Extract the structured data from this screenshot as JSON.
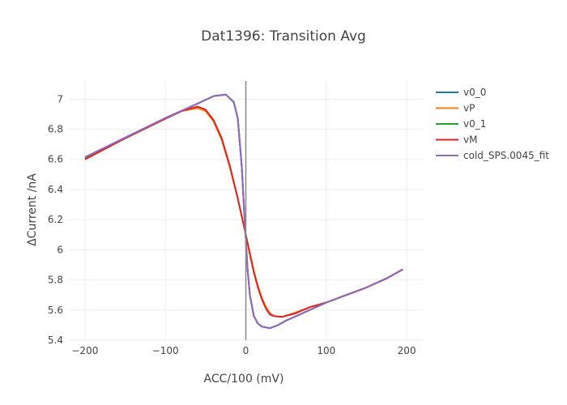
{
  "chart_data": {
    "type": "line",
    "title": "Dat1396: Transition Avg",
    "xlabel": "ACC/100 (mV)",
    "ylabel": "ΔCurrent /nA",
    "xlim": [
      -220,
      220
    ],
    "ylim": [
      5.4,
      7.12
    ],
    "xticks": [
      -200,
      -100,
      0,
      100,
      200
    ],
    "xtick_labels": [
      "−200",
      "−100",
      "0",
      "100",
      "200"
    ],
    "yticks": [
      5.4,
      5.6,
      5.8,
      6.0,
      6.2,
      6.4,
      6.6,
      6.8,
      7.0
    ],
    "ytick_labels": [
      "5.4",
      "5.6",
      "5.8",
      "6",
      "6.2",
      "6.4",
      "6.6",
      "6.8",
      "7"
    ],
    "grid": true,
    "legend_position": "top-right",
    "vertical_line_x": 0,
    "series": [
      {
        "name": "v0_0",
        "color": "#1f77b4",
        "x": [
          -200,
          -150,
          -100,
          -60,
          -40,
          -25,
          -15,
          -10,
          -5,
          -2,
          0,
          2,
          5,
          10,
          15,
          20,
          30,
          40,
          50,
          75,
          100,
          125,
          150,
          175,
          195
        ],
        "y": [
          6.61,
          6.74,
          6.87,
          6.97,
          7.02,
          7.03,
          6.98,
          6.87,
          6.55,
          6.25,
          6.07,
          5.88,
          5.7,
          5.56,
          5.51,
          5.49,
          5.48,
          5.5,
          5.53,
          5.59,
          5.65,
          5.7,
          5.75,
          5.81,
          5.87
        ]
      },
      {
        "name": "vP",
        "color": "#ff7f0e",
        "x": [
          -200,
          -150,
          -100,
          -80,
          -60,
          -50,
          -40,
          -30,
          -20,
          -10,
          0,
          5,
          10,
          15,
          20,
          25,
          30,
          35,
          45,
          60,
          80,
          100,
          125,
          150,
          175,
          195
        ],
        "y": [
          6.6,
          6.74,
          6.87,
          6.92,
          6.94,
          6.92,
          6.85,
          6.73,
          6.55,
          6.34,
          6.1,
          5.98,
          5.86,
          5.76,
          5.68,
          5.62,
          5.58,
          5.56,
          5.555,
          5.58,
          5.62,
          5.65,
          5.7,
          5.75,
          5.81,
          5.87
        ]
      },
      {
        "name": "v0_1",
        "color": "#2ca02c",
        "x": [
          -200,
          -150,
          -100,
          -80,
          -60,
          -40,
          -25,
          -15,
          -10,
          -5,
          -2,
          0,
          2,
          5,
          10,
          15,
          20,
          30,
          40,
          50,
          75,
          100,
          125,
          150,
          175,
          195
        ],
        "y": [
          6.61,
          6.74,
          6.87,
          6.92,
          6.97,
          7.02,
          7.03,
          6.98,
          6.87,
          6.55,
          6.25,
          6.07,
          5.88,
          5.7,
          5.56,
          5.51,
          5.49,
          5.48,
          5.5,
          5.53,
          5.59,
          5.65,
          5.7,
          5.75,
          5.81,
          5.87
        ]
      },
      {
        "name": "vM",
        "color": "#d62728",
        "x": [
          -200,
          -150,
          -100,
          -80,
          -60,
          -50,
          -40,
          -30,
          -20,
          -10,
          0,
          5,
          10,
          15,
          20,
          25,
          30,
          35,
          45,
          60,
          80,
          100,
          125,
          150,
          175,
          195
        ],
        "y": [
          6.6,
          6.74,
          6.87,
          6.92,
          6.95,
          6.93,
          6.86,
          6.74,
          6.56,
          6.34,
          6.1,
          5.97,
          5.85,
          5.75,
          5.67,
          5.61,
          5.57,
          5.56,
          5.555,
          5.575,
          5.62,
          5.65,
          5.7,
          5.75,
          5.81,
          5.87
        ]
      },
      {
        "name": "cold_SPS.0045_fit",
        "color": "#9467bd",
        "x": [
          -200,
          -150,
          -100,
          -60,
          -40,
          -25,
          -15,
          -10,
          -5,
          -2,
          0,
          2,
          5,
          10,
          15,
          20,
          30,
          40,
          50,
          75,
          100,
          125,
          150,
          175,
          195
        ],
        "y": [
          6.615,
          6.745,
          6.875,
          6.97,
          7.02,
          7.03,
          6.98,
          6.87,
          6.55,
          6.25,
          6.07,
          5.88,
          5.7,
          5.56,
          5.51,
          5.49,
          5.48,
          5.5,
          5.53,
          5.59,
          5.65,
          5.7,
          5.75,
          5.81,
          5.87
        ]
      }
    ]
  }
}
